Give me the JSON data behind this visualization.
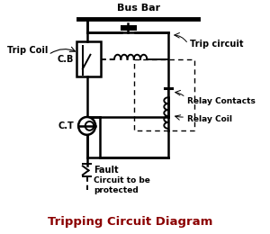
{
  "title": "Tripping Circuit Diagram",
  "title_color": "#8B0000",
  "bg_color": "#ffffff",
  "labels": {
    "bus_bar": "Bus Bar",
    "trip_coil": "Trip Coil",
    "trip_circuit": "Trip circuit",
    "cb": "C.B",
    "ct": "C.T",
    "relay_contacts": "Relay Contacts",
    "relay_coil": "Relay Coil",
    "fault": "Fault",
    "circuit_protected": "Circuit to be\nprotected"
  }
}
